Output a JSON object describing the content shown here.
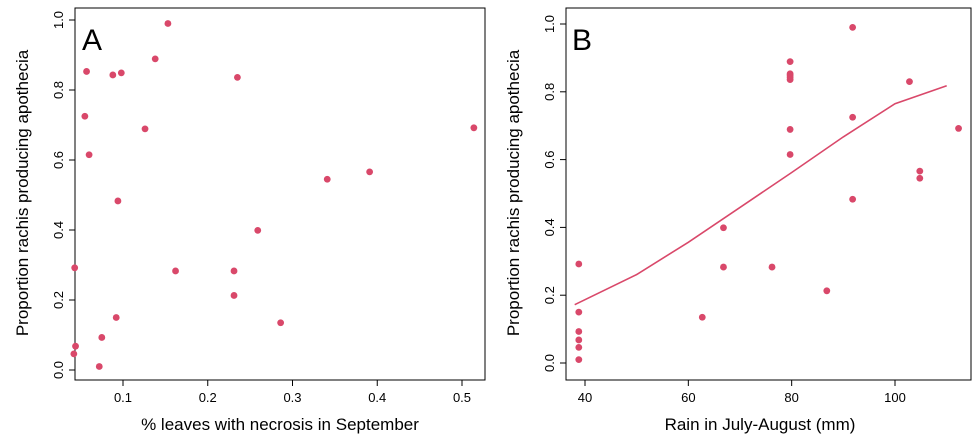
{
  "chart_data": [
    {
      "type": "scatter",
      "panel_label": "A",
      "xlabel": "% leaves with necrosis in September",
      "ylabel": "Proportion rachis producing apothecia",
      "xlim": [
        0.04,
        0.52
      ],
      "ylim": [
        0.0,
        1.0
      ],
      "xticks": [
        0.1,
        0.2,
        0.3,
        0.4,
        0.5
      ],
      "yticks": [
        0.0,
        0.2,
        0.4,
        0.6,
        0.8,
        1.0
      ],
      "xtick_labels": [
        "0.1",
        "0.2",
        "0.3",
        "0.4",
        "0.5"
      ],
      "ytick_labels": [
        "0.0",
        "0.2",
        "0.4",
        "0.6",
        "0.8",
        "1.0"
      ],
      "point_color": "#d9486a",
      "points": [
        {
          "x": 0.153,
          "y": 0.99
        },
        {
          "x": 0.057,
          "y": 0.853
        },
        {
          "x": 0.088,
          "y": 0.843
        },
        {
          "x": 0.098,
          "y": 0.849
        },
        {
          "x": 0.138,
          "y": 0.889
        },
        {
          "x": 0.235,
          "y": 0.836
        },
        {
          "x": 0.055,
          "y": 0.725
        },
        {
          "x": 0.126,
          "y": 0.689
        },
        {
          "x": 0.06,
          "y": 0.615
        },
        {
          "x": 0.514,
          "y": 0.692
        },
        {
          "x": 0.391,
          "y": 0.566
        },
        {
          "x": 0.341,
          "y": 0.545
        },
        {
          "x": 0.094,
          "y": 0.483
        },
        {
          "x": 0.259,
          "y": 0.399
        },
        {
          "x": 0.043,
          "y": 0.292
        },
        {
          "x": 0.162,
          "y": 0.283
        },
        {
          "x": 0.231,
          "y": 0.283
        },
        {
          "x": 0.231,
          "y": 0.213
        },
        {
          "x": 0.092,
          "y": 0.15
        },
        {
          "x": 0.286,
          "y": 0.135
        },
        {
          "x": 0.075,
          "y": 0.093
        },
        {
          "x": 0.044,
          "y": 0.068
        },
        {
          "x": 0.042,
          "y": 0.046
        },
        {
          "x": 0.072,
          "y": 0.01
        }
      ]
    },
    {
      "type": "scatter",
      "panel_label": "B",
      "xlabel": "Rain in July-August (mm)",
      "ylabel": "Proportion rachis producing apothecia",
      "xlim": [
        37,
        113
      ],
      "ylim": [
        0.0,
        1.0
      ],
      "xticks": [
        40,
        60,
        80,
        100
      ],
      "yticks": [
        0.0,
        0.2,
        0.4,
        0.6,
        0.8,
        1.0
      ],
      "xtick_labels": [
        "40",
        "60",
        "80",
        "100"
      ],
      "ytick_labels": [
        "0.0",
        "0.2",
        "0.4",
        "0.6",
        "0.8",
        "1.0"
      ],
      "point_color": "#d9486a",
      "line_color": "#d9486a",
      "points": [
        {
          "x": 38.8,
          "y": 0.292
        },
        {
          "x": 38.8,
          "y": 0.15
        },
        {
          "x": 38.8,
          "y": 0.093
        },
        {
          "x": 38.8,
          "y": 0.068
        },
        {
          "x": 38.8,
          "y": 0.046
        },
        {
          "x": 38.8,
          "y": 0.01
        },
        {
          "x": 62.7,
          "y": 0.135
        },
        {
          "x": 66.8,
          "y": 0.399
        },
        {
          "x": 66.8,
          "y": 0.283
        },
        {
          "x": 76.2,
          "y": 0.283
        },
        {
          "x": 79.7,
          "y": 0.889
        },
        {
          "x": 79.7,
          "y": 0.853
        },
        {
          "x": 79.7,
          "y": 0.849
        },
        {
          "x": 79.7,
          "y": 0.843
        },
        {
          "x": 79.7,
          "y": 0.836
        },
        {
          "x": 79.7,
          "y": 0.689
        },
        {
          "x": 79.7,
          "y": 0.615
        },
        {
          "x": 86.8,
          "y": 0.213
        },
        {
          "x": 91.8,
          "y": 0.99
        },
        {
          "x": 91.8,
          "y": 0.725
        },
        {
          "x": 91.8,
          "y": 0.483
        },
        {
          "x": 102.8,
          "y": 0.83
        },
        {
          "x": 104.8,
          "y": 0.566
        },
        {
          "x": 104.8,
          "y": 0.545
        },
        {
          "x": 112.3,
          "y": 0.692
        }
      ],
      "fitted_line": [
        {
          "x": 38.0,
          "y": 0.172
        },
        {
          "x": 50.0,
          "y": 0.261
        },
        {
          "x": 60.0,
          "y": 0.356
        },
        {
          "x": 70.0,
          "y": 0.459
        },
        {
          "x": 80.0,
          "y": 0.562
        },
        {
          "x": 90.0,
          "y": 0.667
        },
        {
          "x": 100.0,
          "y": 0.765
        },
        {
          "x": 110.0,
          "y": 0.818
        }
      ]
    }
  ]
}
